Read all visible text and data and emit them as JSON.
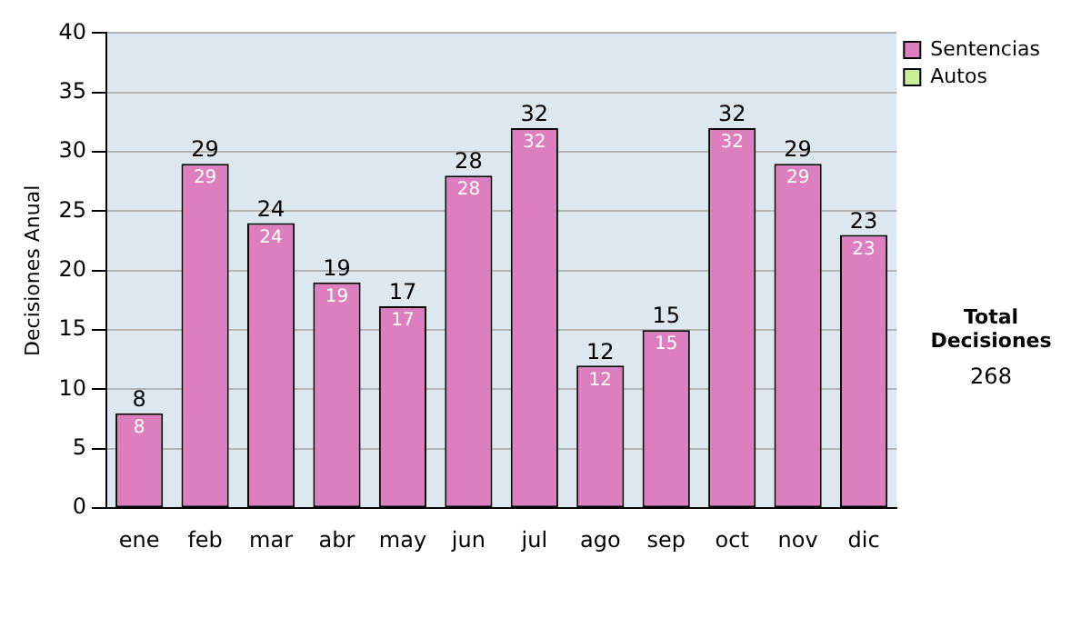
{
  "chart_data": {
    "type": "bar",
    "ylabel": "Decisiones Anual",
    "categories": [
      "ene",
      "feb",
      "mar",
      "abr",
      "may",
      "jun",
      "jul",
      "ago",
      "sep",
      "oct",
      "nov",
      "dic"
    ],
    "series": [
      {
        "name": "Sentencias",
        "color": "#dd7fbf",
        "values": [
          8,
          29,
          24,
          19,
          17,
          28,
          32,
          12,
          15,
          32,
          29,
          23
        ],
        "value_labels": [
          "8",
          "29",
          "24",
          "19",
          "17",
          "28",
          "32",
          "12",
          "15",
          "32",
          "29",
          "23"
        ]
      },
      {
        "name": "Autos",
        "color": "#ccee99",
        "values": [
          0,
          0,
          0,
          0,
          0,
          0,
          0,
          0,
          0,
          0,
          0,
          0
        ]
      }
    ],
    "stacked": true,
    "totals": [
      "8",
      "29",
      "24",
      "19",
      "17",
      "28",
      "32",
      "12",
      "15",
      "32",
      "29",
      "23"
    ],
    "ylim": [
      0,
      40
    ],
    "yticks": [
      0,
      5,
      10,
      15,
      20,
      25,
      30,
      35,
      40
    ],
    "grid": "y",
    "legend": "right",
    "annotations": [
      "Total Decisiones",
      "268"
    ]
  }
}
